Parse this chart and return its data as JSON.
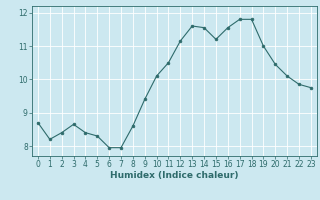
{
  "x": [
    0,
    1,
    2,
    3,
    4,
    5,
    6,
    7,
    8,
    9,
    10,
    11,
    12,
    13,
    14,
    15,
    16,
    17,
    18,
    19,
    20,
    21,
    22,
    23
  ],
  "y": [
    8.7,
    8.2,
    8.4,
    8.65,
    8.4,
    8.3,
    7.95,
    7.95,
    8.6,
    9.4,
    10.1,
    10.5,
    11.15,
    11.6,
    11.55,
    11.2,
    11.55,
    11.8,
    11.8,
    11.0,
    10.45,
    10.1,
    9.85,
    9.75
  ],
  "xlabel": "Humidex (Indice chaleur)",
  "ylabel": "",
  "ylim": [
    7.7,
    12.2
  ],
  "xlim": [
    -0.5,
    23.5
  ],
  "yticks": [
    8,
    9,
    10,
    11,
    12
  ],
  "xticks": [
    0,
    1,
    2,
    3,
    4,
    5,
    6,
    7,
    8,
    9,
    10,
    11,
    12,
    13,
    14,
    15,
    16,
    17,
    18,
    19,
    20,
    21,
    22,
    23
  ],
  "line_color": "#2e6b6b",
  "marker_color": "#2e6b6b",
  "bg_color": "#cce8f0",
  "grid_color": "#ffffff",
  "axis_color": "#2e6b6b",
  "tick_label_color": "#2e6b6b",
  "xlabel_color": "#2e6b6b",
  "font_size_ticks": 5.5,
  "font_size_xlabel": 6.5
}
